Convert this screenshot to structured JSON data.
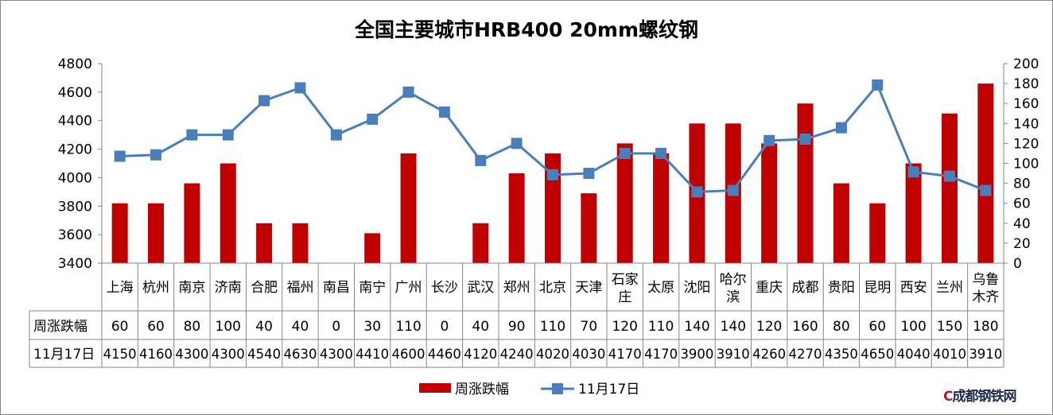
{
  "chart_data": {
    "type": "bar+line",
    "title": "全国主要城市HRB400 20mm螺纹钢",
    "categories": [
      "上海",
      "杭州",
      "南京",
      "济南",
      "合肥",
      "福州",
      "南昌",
      "南宁",
      "广州",
      "长沙",
      "武汉",
      "郑州",
      "北京",
      "天津",
      "石家庄",
      "太原",
      "沈阳",
      "哈尔滨",
      "重庆",
      "成都",
      "贵阳",
      "昆明",
      "西安",
      "兰州",
      "乌鲁木齐"
    ],
    "series": [
      {
        "name": "周涨跌幅",
        "type": "bar",
        "axis": "right",
        "color": "#c00000",
        "values": [
          60,
          60,
          80,
          100,
          40,
          40,
          0,
          30,
          110,
          0,
          40,
          90,
          110,
          70,
          120,
          110,
          140,
          140,
          120,
          160,
          80,
          60,
          100,
          150,
          180
        ]
      },
      {
        "name": "11月17日",
        "type": "line",
        "axis": "left",
        "color": "#4a7ebb",
        "values": [
          4150,
          4160,
          4300,
          4300,
          4540,
          4630,
          4300,
          4410,
          4600,
          4460,
          4120,
          4240,
          4020,
          4030,
          4170,
          4170,
          3900,
          3910,
          4260,
          4270,
          4350,
          4650,
          4040,
          4010,
          3910
        ]
      }
    ],
    "left_axis": {
      "min": 3400,
      "max": 4800,
      "step": 200,
      "ticks": [
        "3400",
        "3600",
        "3800",
        "4000",
        "4200",
        "4400",
        "4600",
        "4800"
      ]
    },
    "right_axis": {
      "min": 0,
      "max": 200,
      "step": 20,
      "ticks": [
        "0",
        "20",
        "40",
        "60",
        "80",
        "100",
        "120",
        "140",
        "160",
        "180",
        "200"
      ]
    },
    "legend_placement": "bottom",
    "data_table": true
  },
  "watermark": "成都钢铁网"
}
